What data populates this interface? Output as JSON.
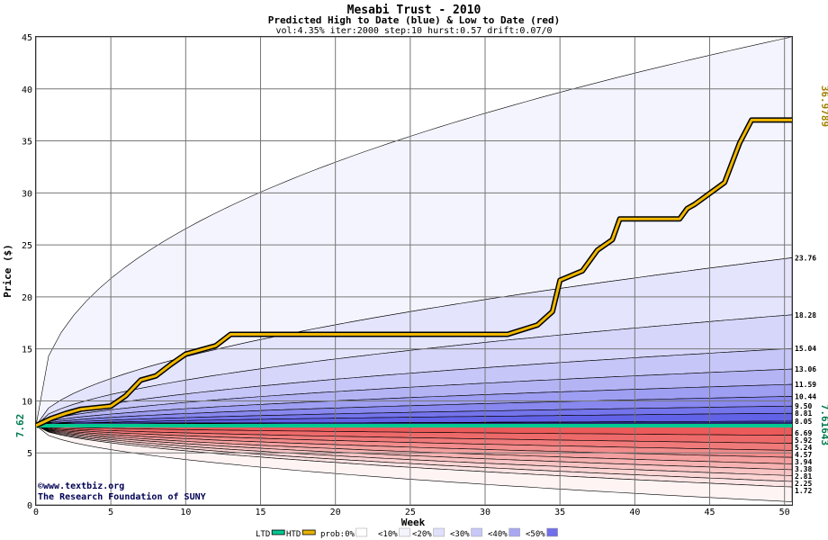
{
  "chart_data": {
    "type": "area",
    "title": "Mesabi Trust - 2010",
    "subtitle": "Predicted High to Date (blue) &  Low to Date (red)",
    "params": "vol:4.35% iter:2000 step:10 hurst:0.57 drift:0.07/0",
    "xlabel": "Week",
    "ylabel": "Price ($)",
    "xlim": [
      0,
      50.5
    ],
    "ylim": [
      0,
      45
    ],
    "xticks": [
      0,
      5,
      10,
      15,
      20,
      25,
      30,
      35,
      40,
      45,
      50
    ],
    "yticks": [
      0,
      5,
      10,
      15,
      20,
      25,
      30,
      35,
      40,
      45
    ],
    "grid": true,
    "start_price": 7.62,
    "start_label": "7.62",
    "htd_end_label": "36.9789",
    "ltd_end_label": "7.61643",
    "upper_quantile_ends": [
      {
        "value": 23.76,
        "label": "23.76"
      },
      {
        "value": 18.28,
        "label": "18.28"
      },
      {
        "value": 15.04,
        "label": "15.04"
      },
      {
        "value": 13.06,
        "label": "13.06"
      },
      {
        "value": 11.59,
        "label": "11.59"
      },
      {
        "value": 10.44,
        "label": "10.44"
      },
      {
        "value": 9.5,
        "label": "9.50"
      },
      {
        "value": 8.81,
        "label": "8.81"
      },
      {
        "value": 8.05,
        "label": "8.05"
      }
    ],
    "upper_outer_end": 45,
    "lower_quantile_ends": [
      {
        "value": 6.69,
        "label": "6.69"
      },
      {
        "value": 5.92,
        "label": "5.92"
      },
      {
        "value": 5.24,
        "label": "5.24"
      },
      {
        "value": 4.57,
        "label": "4.57"
      },
      {
        "value": 3.94,
        "label": "3.94"
      },
      {
        "value": 3.38,
        "label": "3.38"
      },
      {
        "value": 2.81,
        "label": "2.81"
      },
      {
        "value": 2.25,
        "label": "2.25"
      },
      {
        "value": 1.72,
        "label": "1.72"
      }
    ],
    "lower_outer_end": 0.3,
    "htd_series": {
      "name": "HTD",
      "x": [
        0,
        1,
        2,
        3,
        5,
        6,
        7,
        8,
        9,
        10,
        12,
        13,
        22,
        31.5,
        33.5,
        34.5,
        35,
        36.5,
        37.5,
        38.5,
        39,
        43,
        43.5,
        44,
        46,
        47,
        47.8,
        50.5
      ],
      "y": [
        7.62,
        8.3,
        8.8,
        9.2,
        9.5,
        10.5,
        12.0,
        12.4,
        13.5,
        14.5,
        15.3,
        16.4,
        16.4,
        16.4,
        17.3,
        18.6,
        21.6,
        22.5,
        24.5,
        25.5,
        27.5,
        27.5,
        28.5,
        28.9,
        31.0,
        34.8,
        37.0,
        37.0
      ]
    },
    "ltd_series": {
      "name": "LTD",
      "x": [
        0,
        50.5
      ],
      "y": [
        7.62,
        7.62
      ]
    },
    "legend": {
      "placement": "bottom",
      "items": [
        {
          "label": "LTD",
          "swatch": "#00c890"
        },
        {
          "label": "HTD",
          "swatch": "#e8b400"
        },
        {
          "label": "prob:0%",
          "swatch": "#ffffff"
        },
        {
          "label": "<10%",
          "swatch": "#f4f4ff"
        },
        {
          "label": "<20%",
          "swatch": "#e0e0fc"
        },
        {
          "label": "<30%",
          "swatch": "#c8c8f8"
        },
        {
          "label": "<40%",
          "swatch": "#a8a8f2"
        },
        {
          "label": "<50%",
          "swatch": "#7070ea"
        }
      ]
    }
  },
  "credits": {
    "site": "©www.textbiz.org",
    "org": "The Research Foundation of SUNY"
  }
}
